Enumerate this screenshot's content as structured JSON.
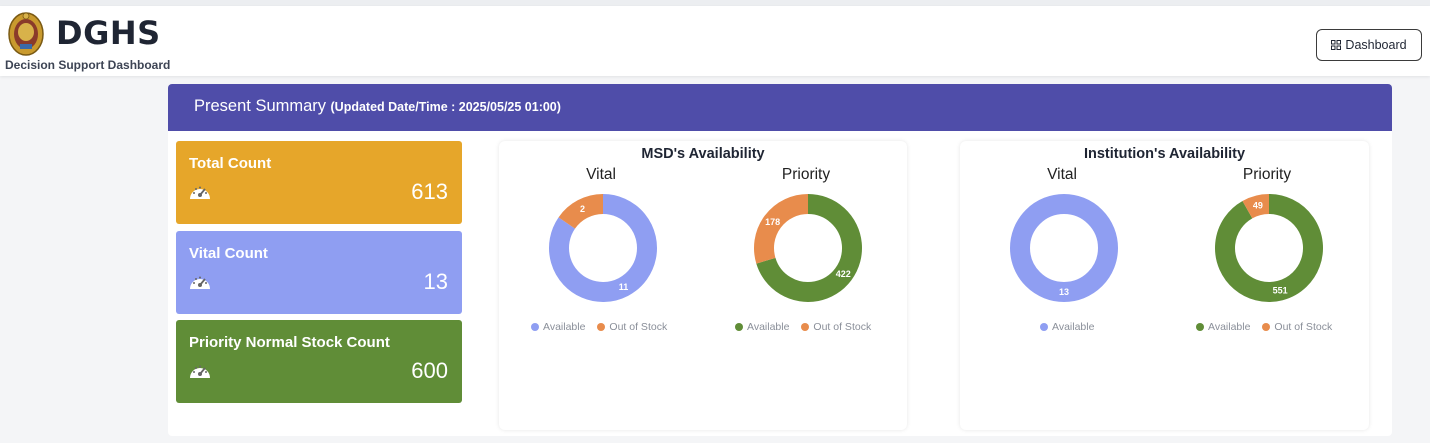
{
  "header": {
    "brand": "DGHS",
    "subtitle": "Decision Support Dashboard",
    "dashboard_button": "Dashboard"
  },
  "summary": {
    "title": "Present Summary",
    "updated": "(Updated Date/Time : 2025/05/25 01:00)"
  },
  "cards": [
    {
      "label": "Total Count",
      "value": "613",
      "color": "#e6a62a"
    },
    {
      "label": "Vital Count",
      "value": "13",
      "color": "#8f9ef2"
    },
    {
      "label": "Priority Normal Stock Count",
      "value": "600",
      "color": "#608d37"
    }
  ],
  "colors": {
    "header": "#4f4da9",
    "available_vital": "#8f9ef2",
    "available_priority": "#608d37",
    "out_of_stock": "#e88c4c"
  },
  "chart_data": [
    {
      "type": "pie",
      "title": "MSD's Availability",
      "series_title": "Vital",
      "categories": [
        "Available",
        "Out of Stock"
      ],
      "values": [
        11,
        2
      ],
      "legend": [
        "Available",
        "Out of Stock"
      ]
    },
    {
      "type": "pie",
      "title": "MSD's Availability",
      "series_title": "Priority",
      "categories": [
        "Available",
        "Out of Stock"
      ],
      "values": [
        422,
        178
      ],
      "legend": [
        "Available",
        "Out of Stock"
      ]
    },
    {
      "type": "pie",
      "title": "Institution's Availability",
      "series_title": "Vital",
      "categories": [
        "Available"
      ],
      "values": [
        13
      ],
      "legend": [
        "Available"
      ]
    },
    {
      "type": "pie",
      "title": "Institution's Availability",
      "series_title": "Priority",
      "categories": [
        "Available",
        "Out of Stock"
      ],
      "values": [
        551,
        49
      ],
      "legend": [
        "Available",
        "Out of Stock"
      ]
    }
  ],
  "chart_groups": {
    "msd": {
      "title": "MSD's Availability"
    },
    "institution": {
      "title": "Institution's Availability"
    }
  }
}
